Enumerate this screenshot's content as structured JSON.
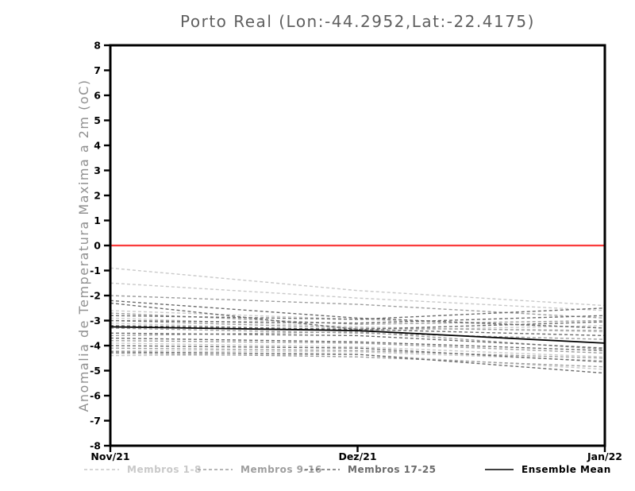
{
  "chart_data": {
    "type": "line",
    "title": "Porto Real (Lon:-44.2952,Lat:-22.4175)",
    "ylabel": "Anomalia de Temperatura Maxima a 2m (oC)",
    "x_categories": [
      "Nov/21",
      "Dez/21",
      "Jan/22"
    ],
    "ylim": [
      -8,
      8
    ],
    "yticks": [
      8,
      7,
      6,
      5,
      4,
      3,
      2,
      1,
      0,
      -1,
      -2,
      -3,
      -4,
      -5,
      -6,
      -7,
      -8
    ],
    "grid": "off",
    "zero_line": {
      "value": 0,
      "color": "#fa3c3c"
    },
    "legend_position": "bottom",
    "legend": [
      {
        "label": "Membros 1-8",
        "color": "#c9c9c9",
        "style": "dashed"
      },
      {
        "label": "Membros 9-16",
        "color": "#9e9e9e",
        "style": "dashed"
      },
      {
        "label": "Membros 17-25",
        "color": "#6b6b6b",
        "style": "dashed"
      },
      {
        "label": "Ensemble Mean",
        "color": "#000000",
        "style": "solid"
      }
    ],
    "series": [
      {
        "name": "Membro 1",
        "group": 0,
        "values": [
          -0.9,
          -1.8,
          -2.4
        ]
      },
      {
        "name": "Membro 2",
        "group": 0,
        "values": [
          -1.5,
          -2.1,
          -2.6
        ]
      },
      {
        "name": "Membro 3",
        "group": 0,
        "values": [
          -2.6,
          -2.95,
          -3.3
        ]
      },
      {
        "name": "Membro 4",
        "group": 0,
        "values": [
          -2.9,
          -3.25,
          -3.45
        ]
      },
      {
        "name": "Membro 5",
        "group": 0,
        "values": [
          -3.1,
          -3.4,
          -3.2
        ]
      },
      {
        "name": "Membro 6",
        "group": 0,
        "values": [
          -3.9,
          -4.05,
          -4.45
        ]
      },
      {
        "name": "Membro 7",
        "group": 0,
        "values": [
          -4.2,
          -4.25,
          -4.6
        ]
      },
      {
        "name": "Membro 8",
        "group": 0,
        "values": [
          -4.4,
          -4.35,
          -4.95
        ]
      },
      {
        "name": "Membro 9",
        "group": 1,
        "values": [
          -2.0,
          -2.35,
          -2.9
        ]
      },
      {
        "name": "Membro 10",
        "group": 1,
        "values": [
          -2.7,
          -3.15,
          -3.0
        ]
      },
      {
        "name": "Membro 11",
        "group": 1,
        "values": [
          -3.0,
          -3.3,
          -3.4
        ]
      },
      {
        "name": "Membro 12",
        "group": 1,
        "values": [
          -3.3,
          -3.5,
          -3.75
        ]
      },
      {
        "name": "Membro 13",
        "group": 1,
        "values": [
          -3.6,
          -3.45,
          -4.15
        ]
      },
      {
        "name": "Membro 14",
        "group": 1,
        "values": [
          -3.8,
          -3.9,
          -4.3
        ]
      },
      {
        "name": "Membro 15",
        "group": 1,
        "values": [
          -4.1,
          -4.2,
          -4.5
        ]
      },
      {
        "name": "Membro 16",
        "group": 1,
        "values": [
          -4.3,
          -4.45,
          -4.85
        ]
      },
      {
        "name": "Membro 17",
        "group": 2,
        "values": [
          -2.2,
          -2.9,
          -3.3
        ]
      },
      {
        "name": "Membro 18",
        "group": 2,
        "values": [
          -2.3,
          -3.35,
          -3.6
        ]
      },
      {
        "name": "Membro 19",
        "group": 2,
        "values": [
          -2.8,
          -2.95,
          -2.5
        ]
      },
      {
        "name": "Membro 20",
        "group": 2,
        "values": [
          -3.0,
          -3.1,
          -2.8
        ]
      },
      {
        "name": "Membro 21",
        "group": 2,
        "values": [
          -3.2,
          -3.35,
          -3.05
        ]
      },
      {
        "name": "Membro 22",
        "group": 2,
        "values": [
          -3.5,
          -3.6,
          -4.1
        ]
      },
      {
        "name": "Membro 23",
        "group": 2,
        "values": [
          -3.7,
          -3.85,
          -4.2
        ]
      },
      {
        "name": "Membro 24",
        "group": 2,
        "values": [
          -4.0,
          -4.1,
          -4.65
        ]
      },
      {
        "name": "Membro 25",
        "group": 2,
        "values": [
          -4.25,
          -4.35,
          -5.1
        ]
      },
      {
        "name": "Ensemble Mean",
        "group": 3,
        "values": [
          -3.25,
          -3.4,
          -3.9
        ]
      }
    ]
  }
}
